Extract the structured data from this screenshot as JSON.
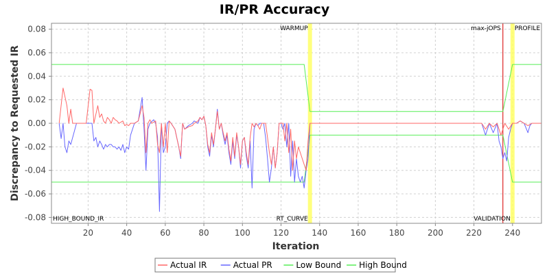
{
  "chart_data": {
    "type": "line",
    "title": "IR/PR Accuracy",
    "xlabel": "Iteration",
    "ylabel": "Discrepancy to Requested IR",
    "xlim": [
      1,
      255
    ],
    "ylim": [
      -0.085,
      0.085
    ],
    "x_ticks": [
      20,
      40,
      60,
      80,
      100,
      120,
      140,
      160,
      180,
      200,
      220,
      240
    ],
    "y_ticks": [
      -0.08,
      -0.06,
      -0.04,
      -0.02,
      0.0,
      0.02,
      0.04,
      0.06,
      0.08
    ],
    "y_tick_labels": [
      "-0.08",
      "-0.06",
      "-0.04",
      "-0.02",
      "0.00",
      "0.02",
      "0.04",
      "0.06",
      "0.08"
    ],
    "grid": true,
    "legend_position": "bottom",
    "colors": {
      "actual_ir": "#ff6666",
      "actual_pr": "#6666ff",
      "bounds": "#55ee55",
      "marker_yellow": "#ffff66",
      "marker_red": "#dd2222"
    },
    "vertical_markers": [
      {
        "x": 135,
        "color": "#ffff66",
        "top_label": "WARMUP",
        "bottom_label": "RT_CURVE"
      },
      {
        "x": 235,
        "color": "#dd2222",
        "top_label": "max-jOPS",
        "bottom_label": ""
      },
      {
        "x": 240,
        "color": "#ffff66",
        "top_label": "PROFILE",
        "bottom_label": "VALIDATION"
      }
    ],
    "corner_label": "HIGH_BOUND_IR",
    "series": [
      {
        "name": "Actual IR",
        "points": [
          [
            5,
            0
          ],
          [
            7,
            0.03
          ],
          [
            9,
            0.015
          ],
          [
            10,
            0
          ],
          [
            11,
            0.012
          ],
          [
            12,
            0
          ],
          [
            19,
            0
          ],
          [
            21,
            0.029
          ],
          [
            22,
            0.028
          ],
          [
            23,
            0
          ],
          [
            25,
            0.015
          ],
          [
            26,
            0.005
          ],
          [
            27,
            0.008
          ],
          [
            28,
            0.002
          ],
          [
            29,
            0
          ],
          [
            30,
            0.005
          ],
          [
            31,
            0.003
          ],
          [
            32,
            0
          ],
          [
            33,
            0.005
          ],
          [
            34,
            0.003
          ],
          [
            35,
            0.002
          ],
          [
            36,
            0
          ],
          [
            38,
            0.002
          ],
          [
            39,
            -0.002
          ],
          [
            40,
            -0.001
          ],
          [
            41,
            -0.002
          ],
          [
            42,
            0
          ],
          [
            44,
            0
          ],
          [
            46,
            0.002
          ],
          [
            48,
            0.015
          ],
          [
            49,
            0.005
          ],
          [
            50,
            -0.025
          ],
          [
            51,
            0
          ],
          [
            52,
            0.003
          ],
          [
            53,
            0
          ],
          [
            55,
            0.002
          ],
          [
            56,
            -0.018
          ],
          [
            57,
            -0.025
          ],
          [
            58,
            0
          ],
          [
            59,
            -0.02
          ],
          [
            60,
            0
          ],
          [
            61,
            -0.025
          ],
          [
            62,
            0.002
          ],
          [
            63,
            0
          ],
          [
            65,
            -0.005
          ],
          [
            67,
            -0.02
          ],
          [
            68,
            -0.028
          ],
          [
            69,
            0
          ],
          [
            70,
            -0.005
          ],
          [
            72,
            -0.003
          ],
          [
            74,
            -0.002
          ],
          [
            75,
            0
          ],
          [
            77,
            0.002
          ],
          [
            78,
            0.005
          ],
          [
            79,
            0.003
          ],
          [
            80,
            0.006
          ],
          [
            81,
            -0.002
          ],
          [
            82,
            -0.018
          ],
          [
            83,
            -0.025
          ],
          [
            84,
            -0.008
          ],
          [
            85,
            -0.018
          ],
          [
            86,
            -0.005
          ],
          [
            87,
            0.01
          ],
          [
            88,
            -0.005
          ],
          [
            89,
            0
          ],
          [
            90,
            -0.008
          ],
          [
            91,
            -0.015
          ],
          [
            92,
            -0.008
          ],
          [
            93,
            -0.022
          ],
          [
            94,
            -0.032
          ],
          [
            95,
            -0.012
          ],
          [
            96,
            -0.028
          ],
          [
            97,
            -0.008
          ],
          [
            98,
            -0.02
          ],
          [
            99,
            -0.035
          ],
          [
            100,
            -0.015
          ],
          [
            101,
            -0.012
          ],
          [
            102,
            -0.025
          ],
          [
            103,
            -0.035
          ],
          [
            104,
            -0.012
          ],
          [
            105,
            0
          ],
          [
            106,
            -0.003
          ],
          [
            107,
            0
          ],
          [
            108,
            -0.002
          ],
          [
            109,
            -0.005
          ],
          [
            110,
            0
          ],
          [
            112,
            0
          ],
          [
            113,
            -0.012
          ],
          [
            114,
            -0.025
          ],
          [
            115,
            -0.035
          ],
          [
            116,
            -0.02
          ],
          [
            117,
            -0.038
          ],
          [
            118,
            -0.025
          ],
          [
            119,
            0
          ],
          [
            121,
            0
          ],
          [
            122,
            -0.015
          ],
          [
            123,
            0
          ],
          [
            124,
            -0.025
          ],
          [
            125,
            -0.005
          ],
          [
            126,
            -0.04
          ],
          [
            127,
            -0.015
          ],
          [
            128,
            -0.03
          ],
          [
            129,
            -0.02
          ],
          [
            130,
            -0.025
          ],
          [
            132,
            -0.035
          ],
          [
            133,
            -0.04
          ],
          [
            134,
            -0.015
          ],
          [
            135,
            0
          ],
          [
            140,
            0
          ],
          [
            145,
            0
          ],
          [
            150,
            0
          ],
          [
            155,
            0
          ],
          [
            160,
            0
          ],
          [
            165,
            0
          ],
          [
            170,
            0
          ],
          [
            175,
            0
          ],
          [
            180,
            0
          ],
          [
            185,
            0
          ],
          [
            190,
            0
          ],
          [
            195,
            0
          ],
          [
            200,
            0
          ],
          [
            205,
            0
          ],
          [
            210,
            0
          ],
          [
            215,
            0
          ],
          [
            220,
            0
          ],
          [
            224,
            0
          ],
          [
            226,
            -0.005
          ],
          [
            228,
            0
          ],
          [
            230,
            -0.003
          ],
          [
            232,
            0
          ],
          [
            234,
            -0.01
          ],
          [
            236,
            0
          ],
          [
            238,
            -0.005
          ],
          [
            240,
            0
          ],
          [
            242,
            0
          ],
          [
            244,
            0.002
          ],
          [
            246,
            0
          ],
          [
            248,
            -0.002
          ],
          [
            250,
            0
          ],
          [
            252,
            0
          ],
          [
            255,
            0
          ]
        ]
      },
      {
        "name": "Actual PR",
        "points": [
          [
            5,
            0
          ],
          [
            6,
            -0.013
          ],
          [
            7,
            0
          ],
          [
            8,
            -0.02
          ],
          [
            9,
            -0.025
          ],
          [
            10,
            -0.015
          ],
          [
            11,
            -0.018
          ],
          [
            12,
            -0.012
          ],
          [
            14,
            0
          ],
          [
            19,
            0
          ],
          [
            21,
            0
          ],
          [
            22,
            0
          ],
          [
            23,
            -0.015
          ],
          [
            24,
            -0.012
          ],
          [
            25,
            -0.02
          ],
          [
            26,
            -0.015
          ],
          [
            27,
            -0.018
          ],
          [
            28,
            -0.022
          ],
          [
            29,
            -0.018
          ],
          [
            30,
            -0.02
          ],
          [
            31,
            -0.018
          ],
          [
            32,
            -0.018
          ],
          [
            33,
            -0.02
          ],
          [
            34,
            -0.02
          ],
          [
            35,
            -0.022
          ],
          [
            36,
            -0.02
          ],
          [
            37,
            -0.023
          ],
          [
            38,
            -0.018
          ],
          [
            39,
            -0.025
          ],
          [
            40,
            -0.02
          ],
          [
            41,
            -0.022
          ],
          [
            42,
            -0.01
          ],
          [
            44,
            0
          ],
          [
            46,
            0.002
          ],
          [
            48,
            0.022
          ],
          [
            49,
            -0.005
          ],
          [
            50,
            -0.04
          ],
          [
            51,
            -0.005
          ],
          [
            52,
            0
          ],
          [
            54,
            0.003
          ],
          [
            55,
            0
          ],
          [
            56,
            -0.012
          ],
          [
            57,
            -0.075
          ],
          [
            58,
            0
          ],
          [
            59,
            -0.025
          ],
          [
            60,
            -0.02
          ],
          [
            61,
            0
          ],
          [
            62,
            0.002
          ],
          [
            63,
            0
          ],
          [
            65,
            -0.005
          ],
          [
            67,
            -0.02
          ],
          [
            68,
            -0.03
          ],
          [
            69,
            0
          ],
          [
            70,
            -0.005
          ],
          [
            72,
            -0.002
          ],
          [
            74,
            0
          ],
          [
            75,
            0.002
          ],
          [
            77,
            0
          ],
          [
            78,
            0.005
          ],
          [
            79,
            0.003
          ],
          [
            80,
            0.006
          ],
          [
            81,
            -0.002
          ],
          [
            82,
            -0.02
          ],
          [
            83,
            -0.028
          ],
          [
            84,
            -0.01
          ],
          [
            85,
            -0.02
          ],
          [
            86,
            -0.005
          ],
          [
            87,
            0.012
          ],
          [
            88,
            -0.005
          ],
          [
            89,
            0
          ],
          [
            90,
            -0.01
          ],
          [
            91,
            -0.018
          ],
          [
            92,
            -0.01
          ],
          [
            93,
            -0.025
          ],
          [
            94,
            -0.035
          ],
          [
            95,
            -0.015
          ],
          [
            96,
            -0.03
          ],
          [
            97,
            -0.01
          ],
          [
            98,
            -0.02
          ],
          [
            99,
            -0.038
          ],
          [
            100,
            -0.015
          ],
          [
            101,
            -0.012
          ],
          [
            102,
            -0.028
          ],
          [
            103,
            -0.038
          ],
          [
            104,
            -0.015
          ],
          [
            105,
            -0.055
          ],
          [
            106,
            -0.005
          ],
          [
            107,
            0
          ],
          [
            108,
            -0.002
          ],
          [
            109,
            0
          ],
          [
            111,
            0
          ],
          [
            112,
            -0.012
          ],
          [
            113,
            -0.03
          ],
          [
            114,
            -0.05
          ],
          [
            115,
            -0.038
          ],
          [
            116,
            -0.02
          ],
          [
            117,
            -0.038
          ],
          [
            118,
            -0.025
          ],
          [
            119,
            0
          ],
          [
            120,
            0
          ],
          [
            121,
            -0.005
          ],
          [
            122,
            0
          ],
          [
            123,
            -0.02
          ],
          [
            124,
            0
          ],
          [
            125,
            -0.045
          ],
          [
            126,
            -0.015
          ],
          [
            127,
            -0.05
          ],
          [
            128,
            -0.03
          ],
          [
            129,
            -0.045
          ],
          [
            130,
            -0.05
          ],
          [
            131,
            -0.045
          ],
          [
            132,
            -0.055
          ],
          [
            133,
            -0.04
          ],
          [
            134,
            -0.03
          ],
          [
            135,
            0
          ],
          [
            140,
            0
          ],
          [
            145,
            0
          ],
          [
            150,
            0
          ],
          [
            155,
            0
          ],
          [
            160,
            0
          ],
          [
            165,
            0
          ],
          [
            170,
            0
          ],
          [
            175,
            0
          ],
          [
            180,
            0
          ],
          [
            185,
            0
          ],
          [
            190,
            0
          ],
          [
            195,
            0
          ],
          [
            200,
            0
          ],
          [
            205,
            0
          ],
          [
            210,
            0
          ],
          [
            215,
            0
          ],
          [
            220,
            0
          ],
          [
            224,
            0
          ],
          [
            226,
            -0.01
          ],
          [
            228,
            0
          ],
          [
            230,
            -0.008
          ],
          [
            232,
            0
          ],
          [
            233,
            -0.015
          ],
          [
            234,
            -0.02
          ],
          [
            235,
            -0.03
          ],
          [
            236,
            -0.025
          ],
          [
            237,
            -0.032
          ],
          [
            238,
            -0.012
          ],
          [
            239,
            -0.005
          ],
          [
            240,
            0
          ],
          [
            242,
            0
          ],
          [
            244,
            0.002
          ],
          [
            246,
            0
          ],
          [
            248,
            -0.008
          ],
          [
            249,
            -0.002
          ],
          [
            250,
            0
          ],
          [
            252,
            0
          ],
          [
            255,
            0
          ]
        ]
      },
      {
        "name": "Low Bound",
        "points": [
          [
            1,
            -0.05
          ],
          [
            132,
            -0.05
          ],
          [
            135,
            -0.01
          ],
          [
            235,
            -0.01
          ],
          [
            240,
            -0.05
          ],
          [
            255,
            -0.05
          ]
        ]
      },
      {
        "name": "High Bound",
        "points": [
          [
            1,
            0.05
          ],
          [
            132,
            0.05
          ],
          [
            135,
            0.01
          ],
          [
            235,
            0.01
          ],
          [
            240,
            0.05
          ],
          [
            255,
            0.05
          ]
        ]
      }
    ]
  },
  "legend": [
    {
      "label": "Actual IR",
      "color": "#ff6666"
    },
    {
      "label": "Actual PR",
      "color": "#6666ff"
    },
    {
      "label": "Low Bound",
      "color": "#55ee55"
    },
    {
      "label": "High Bound",
      "color": "#55ee55"
    }
  ]
}
